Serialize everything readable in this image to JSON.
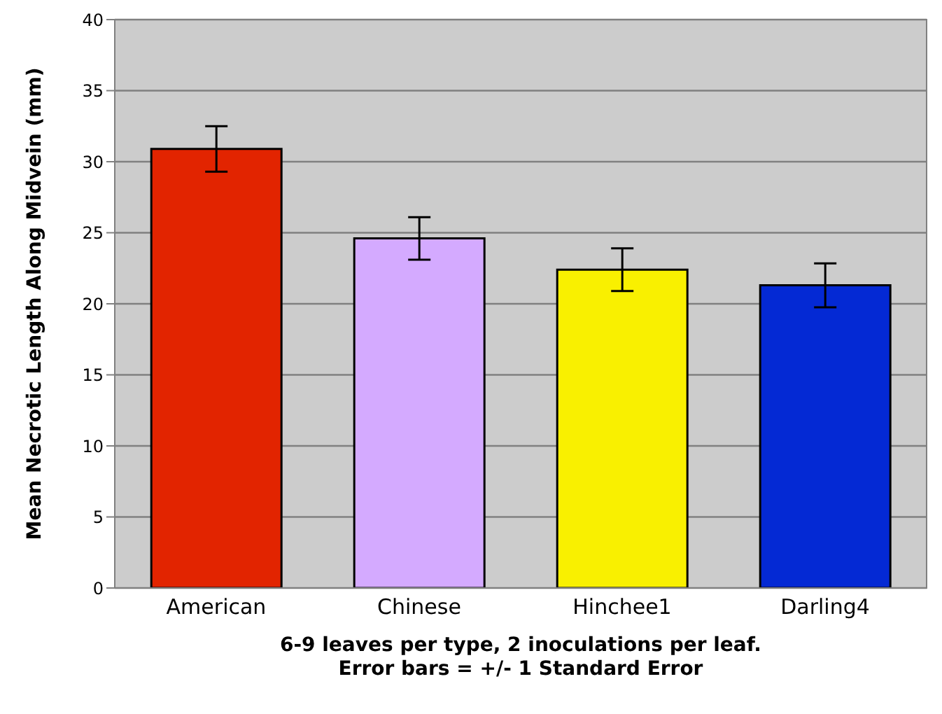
{
  "chart_data": {
    "type": "bar",
    "categories": [
      "American",
      "Chinese",
      "Hinchee1",
      "Darling4"
    ],
    "values": [
      30.9,
      24.6,
      22.4,
      21.3
    ],
    "errors": [
      1.6,
      1.5,
      1.5,
      1.55
    ],
    "colors": [
      "#e22400",
      "#d4aaff",
      "#f9f000",
      "#0429d4"
    ],
    "ylabel": "Mean Necrotic Length Along Midvein (mm)",
    "xlabel": "6-9 leaves per type, 2 inoculations per leaf.\nError bars = +/- 1 Standard Error",
    "ylim": [
      0,
      40
    ],
    "yticks": [
      0,
      5,
      10,
      15,
      20,
      25,
      30,
      35,
      40
    ],
    "grid": "y"
  }
}
